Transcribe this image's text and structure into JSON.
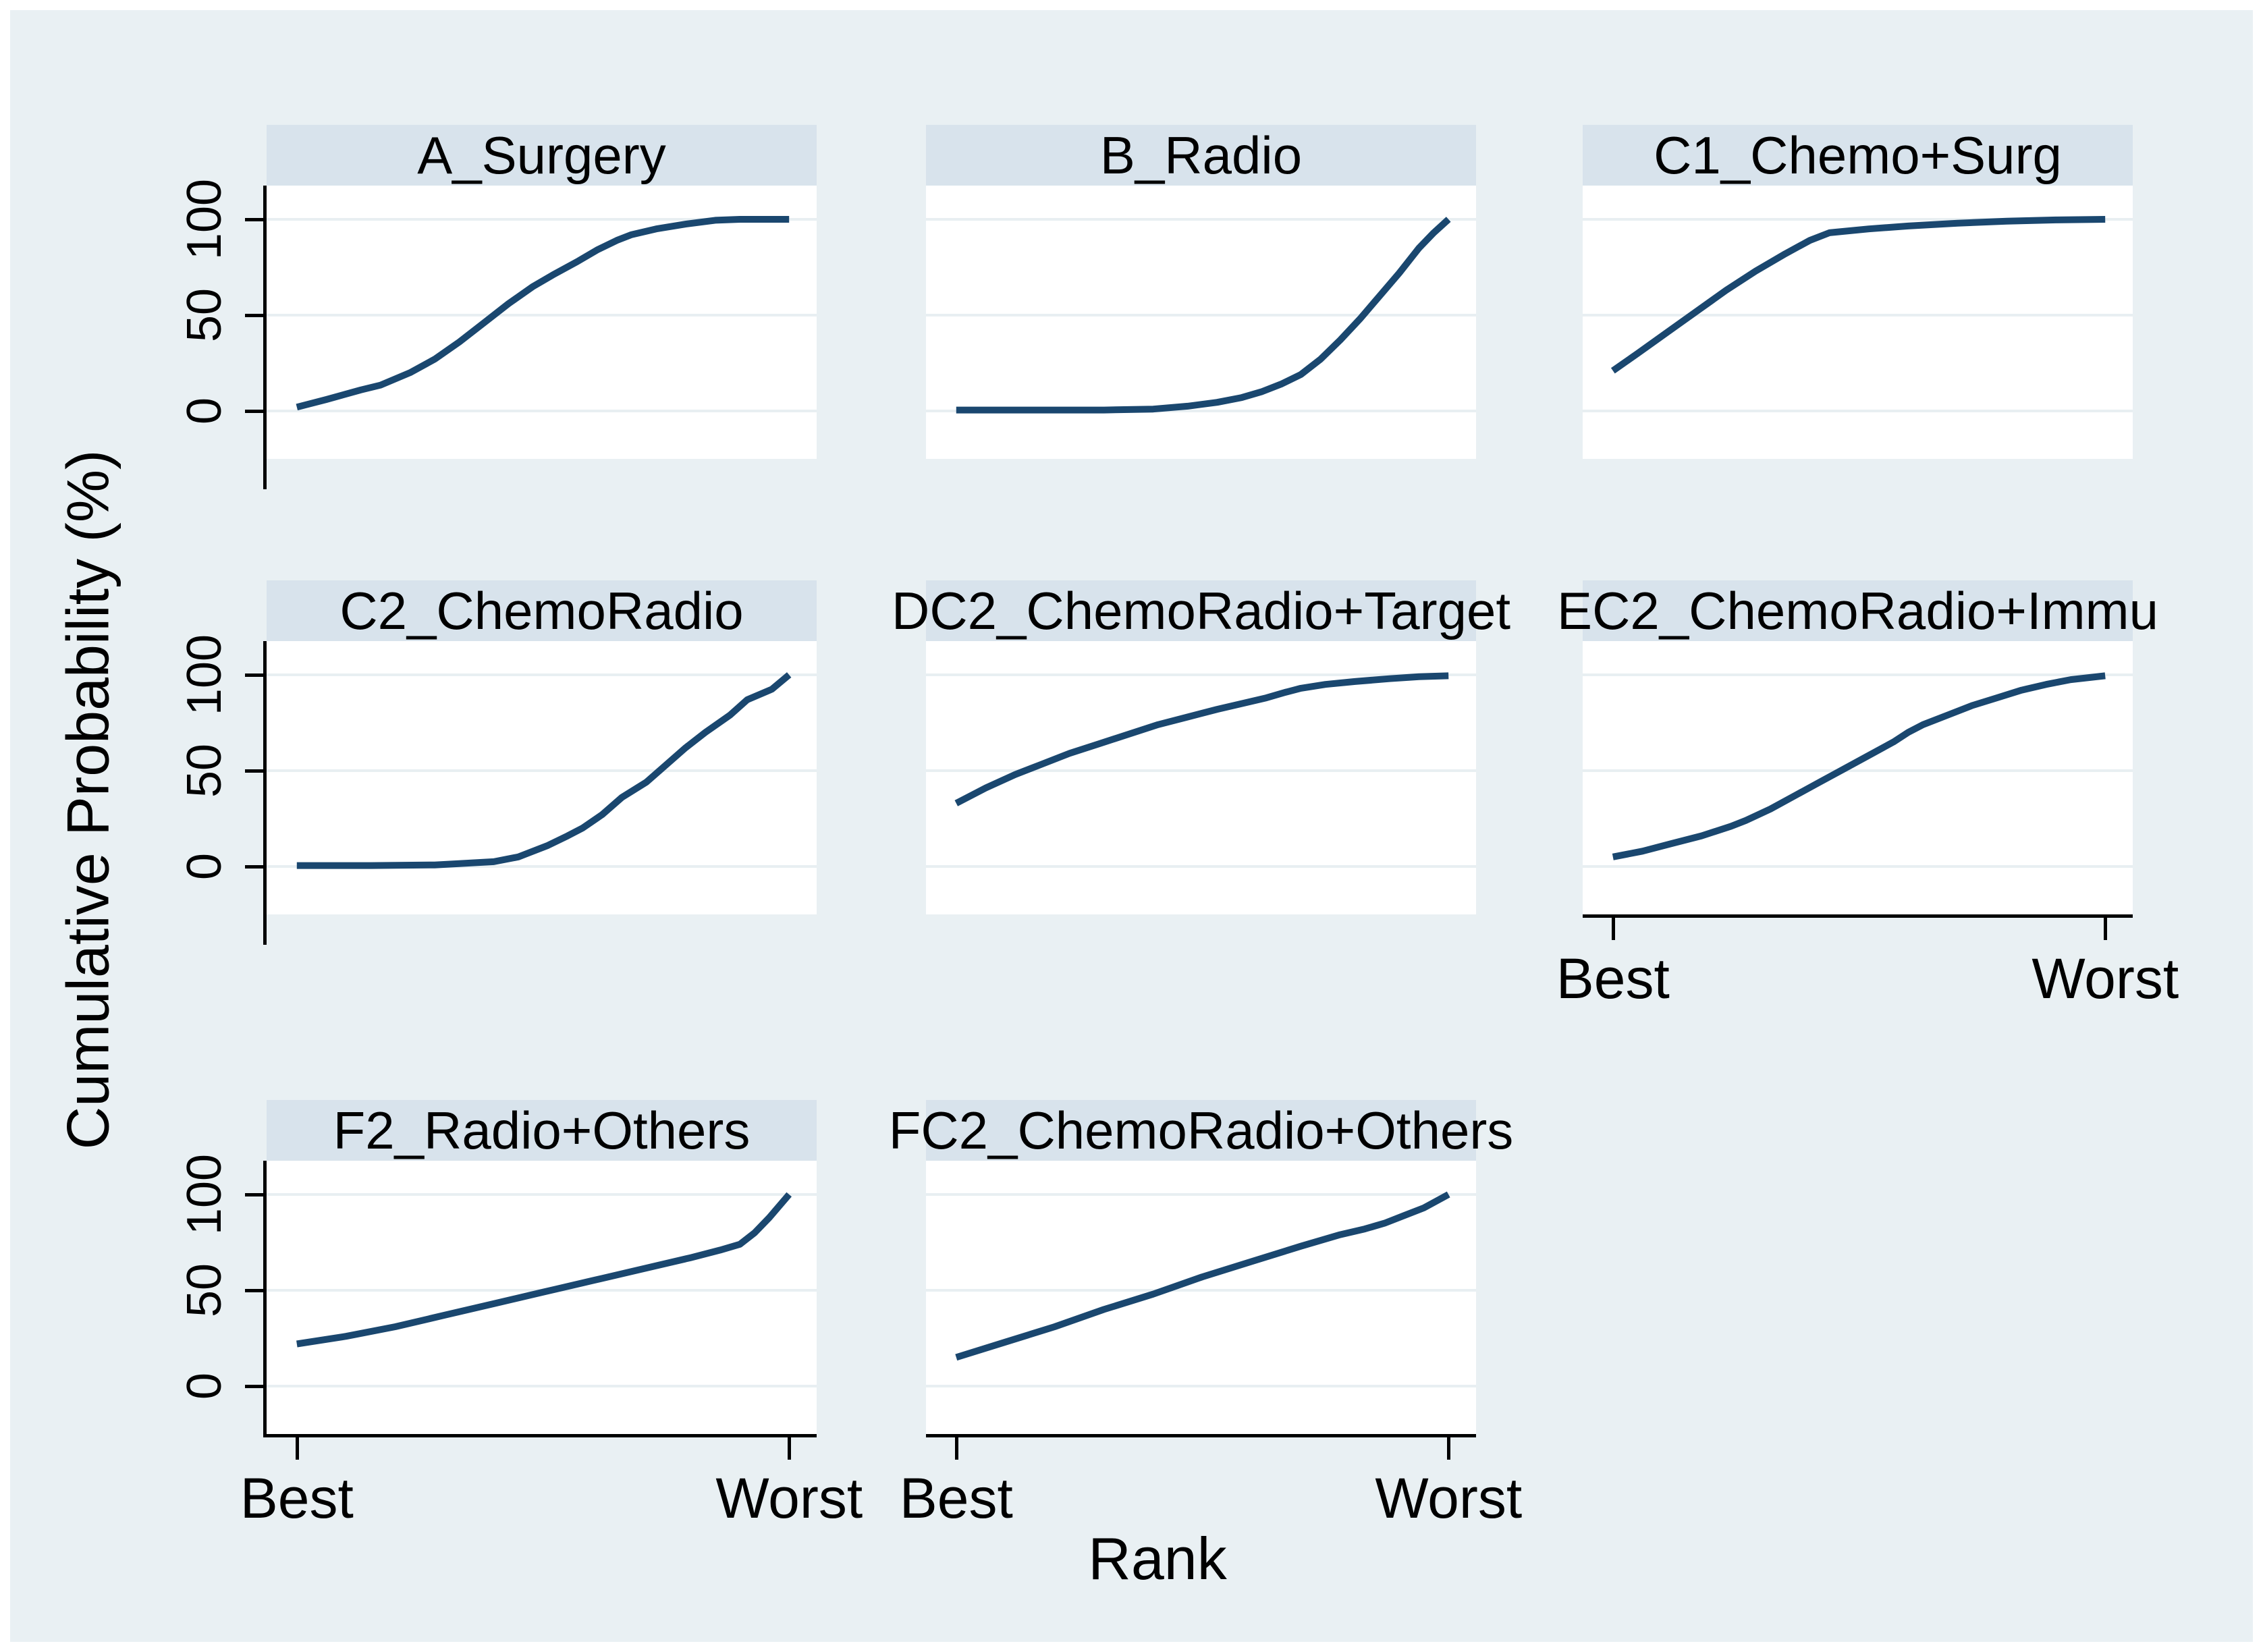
{
  "figure": {
    "colors": {
      "background": "#e9f0f3",
      "panel_header": "#d8e3ec",
      "plot_bg": "#ffffff",
      "line": "#1a476f",
      "grid": "#e8eff2",
      "axis": "#000000"
    }
  },
  "chart_data": {
    "type": "line",
    "layout": "3-column small-multiple grid, 8 panels",
    "ylabel": "Cumulative Probability (%)",
    "xlabel": "Rank",
    "x_tick_labels": [
      "Best",
      "Worst"
    ],
    "y_ticks": [
      "0",
      "50",
      "100"
    ],
    "y_range": [
      0,
      100
    ],
    "grid": "horizontal gridlines at y = 0, 50, 100",
    "legend": "none",
    "panels": [
      {
        "title": "A_Surgery",
        "points": [
          [
            0,
            2
          ],
          [
            6,
            6
          ],
          [
            13,
            11
          ],
          [
            17,
            13.5
          ],
          [
            23,
            20
          ],
          [
            28,
            27
          ],
          [
            33,
            36
          ],
          [
            38,
            46
          ],
          [
            43,
            56
          ],
          [
            48,
            65
          ],
          [
            52,
            71
          ],
          [
            57,
            78
          ],
          [
            61,
            84
          ],
          [
            65,
            89
          ],
          [
            68,
            92
          ],
          [
            73,
            95
          ],
          [
            79,
            97.5
          ],
          [
            85,
            99.5
          ],
          [
            90,
            100
          ],
          [
            100,
            100
          ]
        ]
      },
      {
        "title": "B_Radio",
        "points": [
          [
            0,
            0.5
          ],
          [
            15,
            0.5
          ],
          [
            30,
            0.5
          ],
          [
            40,
            1
          ],
          [
            47,
            2.5
          ],
          [
            53,
            4.5
          ],
          [
            58,
            7
          ],
          [
            62,
            10
          ],
          [
            66,
            14
          ],
          [
            70,
            19
          ],
          [
            74,
            27
          ],
          [
            78,
            37
          ],
          [
            82,
            48
          ],
          [
            86,
            60
          ],
          [
            90,
            72
          ],
          [
            94,
            85
          ],
          [
            97,
            93
          ],
          [
            100,
            100
          ]
        ]
      },
      {
        "title": "C1_Chemo+Surg",
        "points": [
          [
            0,
            21
          ],
          [
            5,
            30
          ],
          [
            11,
            41
          ],
          [
            17,
            52
          ],
          [
            23,
            63
          ],
          [
            29,
            73
          ],
          [
            35,
            82
          ],
          [
            40,
            89
          ],
          [
            44,
            93
          ],
          [
            52,
            95
          ],
          [
            60,
            96.5
          ],
          [
            70,
            98
          ],
          [
            80,
            99
          ],
          [
            90,
            99.7
          ],
          [
            100,
            100
          ]
        ]
      },
      {
        "title": "C2_ChemoRadio",
        "points": [
          [
            0,
            0.5
          ],
          [
            15,
            0.5
          ],
          [
            28,
            0.8
          ],
          [
            33,
            1.5
          ],
          [
            40,
            2.5
          ],
          [
            45,
            5
          ],
          [
            51,
            11
          ],
          [
            55,
            16
          ],
          [
            58,
            20
          ],
          [
            62,
            27
          ],
          [
            66,
            36
          ],
          [
            71,
            44
          ],
          [
            75,
            53
          ],
          [
            79,
            62
          ],
          [
            83,
            70
          ],
          [
            88,
            79
          ],
          [
            91.5,
            87
          ],
          [
            96.5,
            92.5
          ],
          [
            100,
            100
          ]
        ]
      },
      {
        "title": "DC2_ChemoRadio+Target",
        "points": [
          [
            0,
            33
          ],
          [
            6,
            41
          ],
          [
            12,
            48
          ],
          [
            17,
            53
          ],
          [
            23,
            59
          ],
          [
            29,
            64
          ],
          [
            35,
            69
          ],
          [
            41,
            74
          ],
          [
            47,
            78
          ],
          [
            53,
            82
          ],
          [
            58,
            85
          ],
          [
            63,
            88
          ],
          [
            67,
            91
          ],
          [
            70,
            93
          ],
          [
            75,
            95
          ],
          [
            81,
            96.5
          ],
          [
            88,
            98
          ],
          [
            94,
            99
          ],
          [
            100,
            99.5
          ]
        ]
      },
      {
        "title": "EC2_ChemoRadio+Immu",
        "points": [
          [
            0,
            5
          ],
          [
            6,
            8
          ],
          [
            12,
            12
          ],
          [
            18,
            16
          ],
          [
            24,
            21
          ],
          [
            27,
            24
          ],
          [
            32,
            30
          ],
          [
            37,
            37
          ],
          [
            42,
            44
          ],
          [
            47,
            51
          ],
          [
            52,
            58
          ],
          [
            57,
            65
          ],
          [
            60,
            70
          ],
          [
            63,
            74
          ],
          [
            68,
            79
          ],
          [
            73,
            84
          ],
          [
            78,
            88
          ],
          [
            83,
            92
          ],
          [
            88,
            95
          ],
          [
            93,
            97.5
          ],
          [
            100,
            99.5
          ]
        ]
      },
      {
        "title": "F2_Radio+Others",
        "points": [
          [
            0,
            22
          ],
          [
            10,
            26
          ],
          [
            20,
            31
          ],
          [
            30,
            37
          ],
          [
            40,
            43
          ],
          [
            50,
            49
          ],
          [
            60,
            55
          ],
          [
            70,
            61
          ],
          [
            80,
            67
          ],
          [
            86,
            71
          ],
          [
            90,
            74
          ],
          [
            93,
            80
          ],
          [
            96,
            88
          ],
          [
            100,
            100
          ]
        ]
      },
      {
        "title": "FC2_ChemoRadio+Others",
        "points": [
          [
            0,
            15
          ],
          [
            10,
            23
          ],
          [
            20,
            31
          ],
          [
            30,
            40
          ],
          [
            40,
            48
          ],
          [
            50,
            57
          ],
          [
            60,
            65
          ],
          [
            70,
            73
          ],
          [
            78,
            79
          ],
          [
            83,
            82
          ],
          [
            87,
            85
          ],
          [
            91,
            89
          ],
          [
            95,
            93
          ],
          [
            100,
            100
          ]
        ]
      }
    ]
  }
}
